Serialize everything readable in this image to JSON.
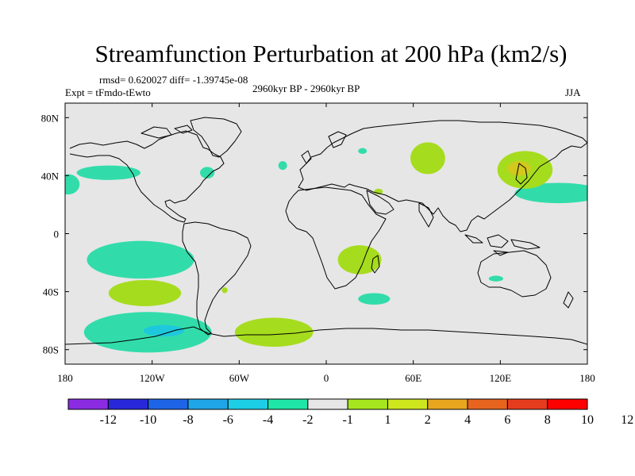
{
  "title": "Streamfunction Perturbation at 200 hPa (km2/s)",
  "stats_line": "rmsd= 0.620027 diff= -1.39745e-08",
  "experiment": "Expt = tFmdo-tEwto",
  "period": "2960kyr BP - 2960kyr BP",
  "season": "JJA",
  "axes": {
    "lon_ticks": [
      "180",
      "120W",
      "60W",
      "0",
      "60E",
      "120E",
      "180"
    ],
    "lat_ticks": [
      "80N",
      "40N",
      "0",
      "40S",
      "80S"
    ],
    "lon_values": [
      -180,
      -120,
      -60,
      0,
      60,
      120,
      180
    ],
    "lat_values": [
      80,
      40,
      0,
      -40,
      -80
    ]
  },
  "colorbar": {
    "colors": [
      "#8a2be2",
      "#2828d8",
      "#1e64e6",
      "#1ea6e6",
      "#1ecde6",
      "#1ee6a6",
      "#e6e6e6",
      "#a6e61e",
      "#cde61e",
      "#e6a61e",
      "#e6641e",
      "#e63c1e",
      "#ff0000"
    ],
    "labels": [
      "-12",
      "-10",
      "-8",
      "-6",
      "-4",
      "-2",
      "-1",
      "1",
      "2",
      "4",
      "6",
      "8",
      "10",
      "12"
    ]
  },
  "colors": {
    "background": "#e6e6e6",
    "negative_light": "#32dcaa",
    "negative_mid": "#1ec8dc",
    "positive_light": "#a6dc1e",
    "positive_mid": "#d2c81e"
  },
  "anomalies": [
    {
      "sign": "negative",
      "lon": -150,
      "lat": 42,
      "rx": 22,
      "ry": 5
    },
    {
      "sign": "negative",
      "lon": -178,
      "lat": 34,
      "rx": 8,
      "ry": 7
    },
    {
      "sign": "negative",
      "lon": -82,
      "lat": 42,
      "rx": 5,
      "ry": 4
    },
    {
      "sign": "negative",
      "lon": -30,
      "lat": 47,
      "rx": 3,
      "ry": 3
    },
    {
      "sign": "negative",
      "lon": 25,
      "lat": 57,
      "rx": 3,
      "ry": 2
    },
    {
      "sign": "negative",
      "lon": 160,
      "lat": 28,
      "rx": 30,
      "ry": 7
    },
    {
      "sign": "negative",
      "lon": -128,
      "lat": -18,
      "rx": 37,
      "ry": 13
    },
    {
      "sign": "negative",
      "lon": 33,
      "lat": -45,
      "rx": 11,
      "ry": 4
    },
    {
      "sign": "negative",
      "lon": 117,
      "lat": -31,
      "rx": 5,
      "ry": 2
    },
    {
      "sign": "negative",
      "lon": -123,
      "lat": -68,
      "rx": 44,
      "ry": 14
    },
    {
      "sign": "negative_strong",
      "lon": -112,
      "lat": -67,
      "rx": 14,
      "ry": 4
    },
    {
      "sign": "positive",
      "lon": 23,
      "lat": -18,
      "rx": 15,
      "ry": 10
    },
    {
      "sign": "positive",
      "lon": -125,
      "lat": -41,
      "rx": 25,
      "ry": 9
    },
    {
      "sign": "positive",
      "lon": -70,
      "lat": -39,
      "rx": 2,
      "ry": 2
    },
    {
      "sign": "positive",
      "lon": -36,
      "lat": -68,
      "rx": 27,
      "ry": 10
    },
    {
      "sign": "positive",
      "lon": 70,
      "lat": 52,
      "rx": 12,
      "ry": 11
    },
    {
      "sign": "positive",
      "lon": 36,
      "lat": 29,
      "rx": 3,
      "ry": 2
    },
    {
      "sign": "positive",
      "lon": 137,
      "lat": 44,
      "rx": 19,
      "ry": 13
    },
    {
      "sign": "positive_strong",
      "lon": 133,
      "lat": 45,
      "rx": 8,
      "ry": 5
    }
  ]
}
